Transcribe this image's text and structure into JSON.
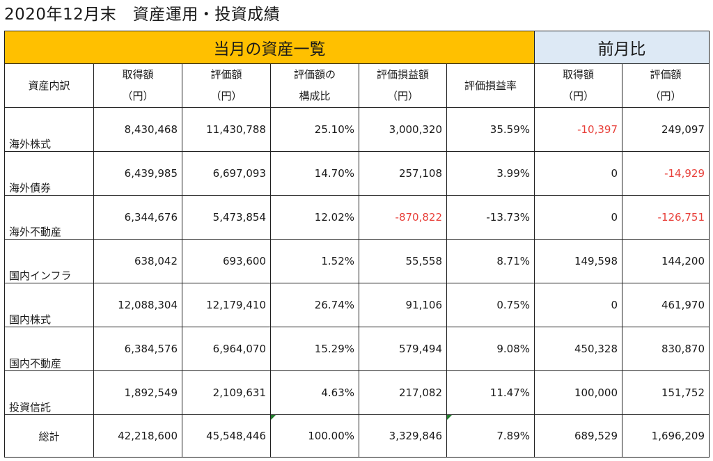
{
  "title": "2020年12月末　資産運用・投資成績",
  "band": {
    "current_label": "当月の資産一覧",
    "prev_label": "前月比",
    "current_bg": "#ffc000",
    "prev_bg": "#dde9f5"
  },
  "negative_color": "#e8403a",
  "headers": [
    {
      "line1": "資産内訳",
      "line2": ""
    },
    {
      "line1": "取得額",
      "line2": "（円）"
    },
    {
      "line1": "評価額",
      "line2": "（円）"
    },
    {
      "line1": "評価額の",
      "line2": "構成比"
    },
    {
      "line1": "評価損益額",
      "line2": "（円）"
    },
    {
      "line1": "評価損益率",
      "line2": ""
    },
    {
      "line1": "取得額",
      "line2": "（円）"
    },
    {
      "line1": "評価額",
      "line2": "（円）"
    }
  ],
  "rows": [
    {
      "category": "海外株式",
      "cells": [
        {
          "text": "8,430,468",
          "negative": false
        },
        {
          "text": "11,430,788",
          "negative": false
        },
        {
          "text": "25.10%",
          "negative": false
        },
        {
          "text": "3,000,320",
          "negative": false
        },
        {
          "text": "35.59%",
          "negative": false
        },
        {
          "text": "-10,397",
          "negative": true
        },
        {
          "text": "249,097",
          "negative": false
        }
      ]
    },
    {
      "category": "海外債券",
      "cells": [
        {
          "text": "6,439,985",
          "negative": false
        },
        {
          "text": "6,697,093",
          "negative": false
        },
        {
          "text": "14.70%",
          "negative": false
        },
        {
          "text": "257,108",
          "negative": false
        },
        {
          "text": "3.99%",
          "negative": false
        },
        {
          "text": "0",
          "negative": false
        },
        {
          "text": "-14,929",
          "negative": true
        }
      ]
    },
    {
      "category": "海外不動産",
      "cells": [
        {
          "text": "6,344,676",
          "negative": false
        },
        {
          "text": "5,473,854",
          "negative": false
        },
        {
          "text": "12.02%",
          "negative": false
        },
        {
          "text": "-870,822",
          "negative": true
        },
        {
          "text": "-13.73%",
          "negative": false
        },
        {
          "text": "0",
          "negative": false
        },
        {
          "text": "-126,751",
          "negative": true
        }
      ]
    },
    {
      "category": "国内インフラ",
      "cells": [
        {
          "text": "638,042",
          "negative": false
        },
        {
          "text": "693,600",
          "negative": false
        },
        {
          "text": "1.52%",
          "negative": false
        },
        {
          "text": "55,558",
          "negative": false
        },
        {
          "text": "8.71%",
          "negative": false
        },
        {
          "text": "149,598",
          "negative": false
        },
        {
          "text": "144,200",
          "negative": false
        }
      ]
    },
    {
      "category": "国内株式",
      "cells": [
        {
          "text": "12,088,304",
          "negative": false
        },
        {
          "text": "12,179,410",
          "negative": false
        },
        {
          "text": "26.74%",
          "negative": false
        },
        {
          "text": "91,106",
          "negative": false
        },
        {
          "text": "0.75%",
          "negative": false
        },
        {
          "text": "0",
          "negative": false
        },
        {
          "text": "461,970",
          "negative": false
        }
      ]
    },
    {
      "category": "国内不動産",
      "cells": [
        {
          "text": "6,384,576",
          "negative": false
        },
        {
          "text": "6,964,070",
          "negative": false
        },
        {
          "text": "15.29%",
          "negative": false
        },
        {
          "text": "579,494",
          "negative": false
        },
        {
          "text": "9.08%",
          "negative": false
        },
        {
          "text": "450,328",
          "negative": false
        },
        {
          "text": "830,870",
          "negative": false
        }
      ]
    },
    {
      "category": "投資信託",
      "cells": [
        {
          "text": "1,892,549",
          "negative": false
        },
        {
          "text": "2,109,631",
          "negative": false
        },
        {
          "text": "4.63%",
          "negative": false
        },
        {
          "text": "217,082",
          "negative": false
        },
        {
          "text": "11.47%",
          "negative": false
        },
        {
          "text": "100,000",
          "negative": false
        },
        {
          "text": "151,752",
          "negative": false
        }
      ]
    }
  ],
  "total": {
    "category": "総計",
    "cells": [
      {
        "text": "42,218,600",
        "negative": false
      },
      {
        "text": "45,548,446",
        "negative": false
      },
      {
        "text": "100.00%",
        "negative": false
      },
      {
        "text": "3,329,846",
        "negative": false
      },
      {
        "text": "7.89%",
        "negative": false
      },
      {
        "text": "689,529",
        "negative": false
      },
      {
        "text": "1,696,209",
        "negative": false
      }
    ]
  }
}
